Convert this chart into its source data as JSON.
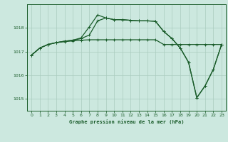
{
  "title": "Graphe pression niveau de la mer (hPa)",
  "background_color": "#cce8df",
  "grid_color": "#aaccbf",
  "line_color": "#1a5c2a",
  "xlim": [
    -0.5,
    23.5
  ],
  "ylim": [
    1014.5,
    1019.0
  ],
  "yticks": [
    1015,
    1016,
    1017,
    1018
  ],
  "xticks": [
    0,
    1,
    2,
    3,
    4,
    5,
    6,
    7,
    8,
    9,
    10,
    11,
    12,
    13,
    14,
    15,
    16,
    17,
    18,
    19,
    20,
    21,
    22,
    23
  ],
  "series": {
    "line1": [
      1016.85,
      1017.15,
      1017.3,
      1017.38,
      1017.42,
      1017.45,
      1017.48,
      1017.5,
      1017.5,
      1017.5,
      1017.5,
      1017.5,
      1017.5,
      1017.5,
      1017.5,
      1017.5,
      1017.3,
      1017.3,
      1017.3,
      1017.3,
      1017.3,
      1017.3,
      1017.3,
      1017.3
    ],
    "line2": [
      1016.85,
      1017.15,
      1017.3,
      1017.38,
      1017.44,
      1017.48,
      1017.55,
      1017.7,
      1018.3,
      1018.42,
      1018.35,
      1018.35,
      1018.32,
      1018.3,
      1018.3,
      1018.28,
      1017.85,
      1017.55,
      1017.15,
      1016.55,
      1015.05,
      1015.55,
      1016.25,
      1017.3
    ],
    "line3": [
      1016.85,
      1017.15,
      1017.3,
      1017.38,
      1017.44,
      1017.48,
      1017.58,
      1018.05,
      1018.55,
      1018.42,
      1018.35,
      1018.35,
      1018.32,
      1018.3,
      1018.3,
      1018.28,
      1017.85,
      1017.55,
      1017.15,
      1016.55,
      1015.05,
      1015.55,
      1016.25,
      1017.3
    ]
  }
}
